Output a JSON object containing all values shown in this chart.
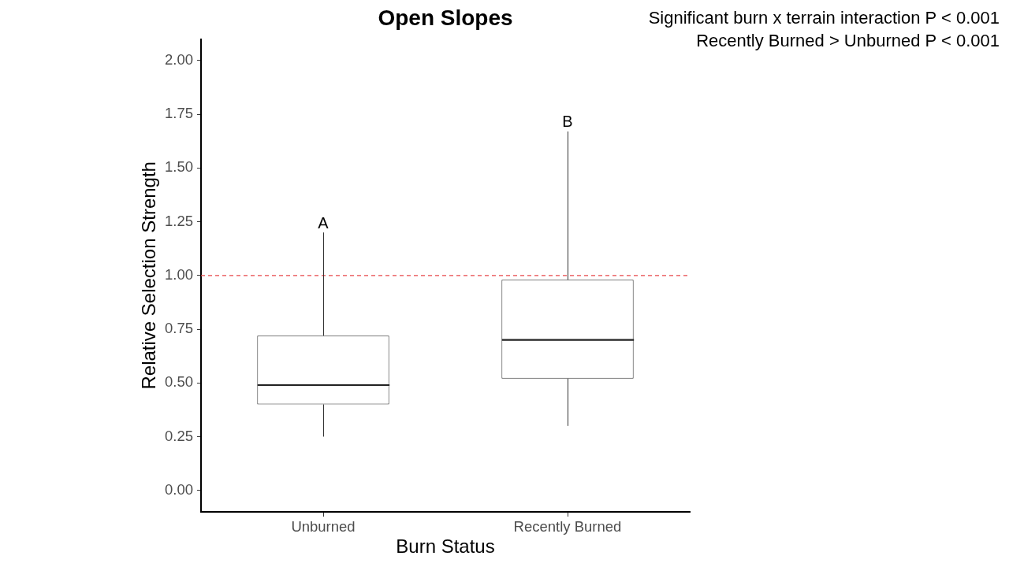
{
  "chart_data": {
    "type": "box",
    "title": "Open Slopes",
    "xlabel": "Burn Status",
    "ylabel": "Relative Selection Strength",
    "categories": [
      "Unburned",
      "Recently Burned"
    ],
    "color": "#333333",
    "boxes": [
      {
        "low": 0.25,
        "q1": 0.4,
        "median": 0.49,
        "q3": 0.72,
        "high": 1.2
      },
      {
        "low": 0.3,
        "q1": 0.52,
        "median": 0.7,
        "q3": 0.98,
        "high": 1.67
      }
    ],
    "ylim": [
      -0.1,
      2.1
    ],
    "yticks": [
      {
        "value": 0,
        "label": "0.00"
      },
      {
        "value": 0.25,
        "label": "0.25"
      },
      {
        "value": 0.5,
        "label": "0.50"
      },
      {
        "value": 0.75,
        "label": "0.75"
      },
      {
        "value": 1,
        "label": "1.00"
      },
      {
        "value": 1.25,
        "label": "1.25"
      },
      {
        "value": 1.5,
        "label": "1.50"
      },
      {
        "value": 1.75,
        "label": "1.75"
      },
      {
        "value": 2,
        "label": "2.00"
      }
    ],
    "ref_lines": [
      {
        "axis": "y",
        "value": 1,
        "color": "#e8474a",
        "line_style": "dashed"
      }
    ],
    "annotations": [
      {
        "text": "A",
        "x": "Unburned",
        "y": 1.2
      },
      {
        "text": "B",
        "x": "Recently Burned",
        "y": 1.67
      },
      "Significant burn x terrain interaction P < 0.001",
      "Recently Burned > Unburned P < 0.001"
    ]
  }
}
